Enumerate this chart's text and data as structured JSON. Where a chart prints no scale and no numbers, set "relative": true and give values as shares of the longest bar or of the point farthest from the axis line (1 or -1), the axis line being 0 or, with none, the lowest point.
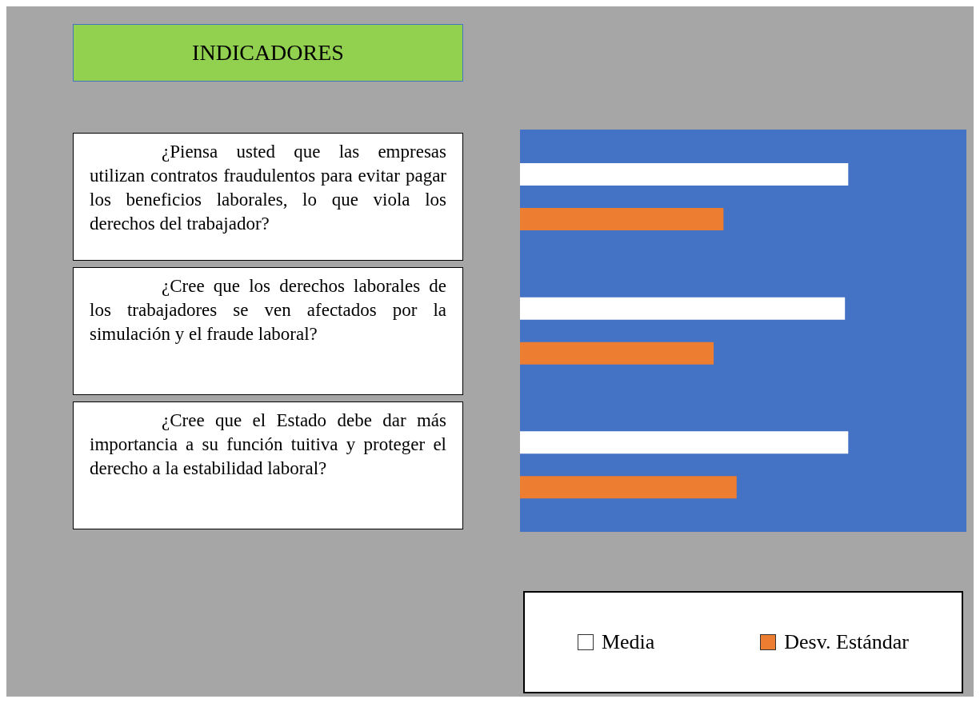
{
  "chart_data": {
    "type": "bar",
    "orientation": "horizontal",
    "relative": true,
    "title": "INDICADORES",
    "categories": [
      "¿Piensa usted que las empresas utilizan contratos fraudulentos para evitar pagar los beneficios laborales, lo que viola los derechos del trabajador?",
      "¿Cree que los derechos laborales de los trabajadores se ven afectados por la simulación y el fraude laboral?",
      "¿Cree que el Estado debe dar más importancia a su función tuitiva y proteger el derecho a la estabilidad laboral?"
    ],
    "series": [
      {
        "name": "Media",
        "color": "#ffffff",
        "values": [
          1,
          0.99,
          1
        ]
      },
      {
        "name": "Desv. Estándar",
        "color": "#ed7d31",
        "values": [
          0.62,
          0.59,
          0.66
        ]
      }
    ],
    "legend": "bottom"
  }
}
